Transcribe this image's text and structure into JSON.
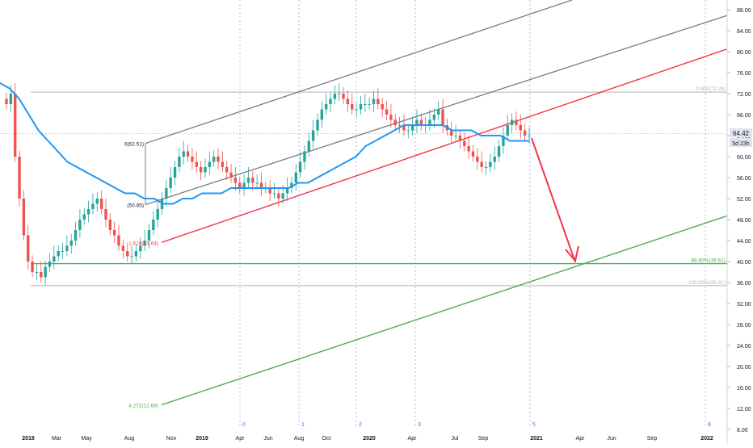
{
  "colors": {
    "up": "#26a69a",
    "down": "#ef5350",
    "ma": "#2196f3",
    "pitchfork_gray": "#787b86",
    "fib_red": "#f23645",
    "fib_green": "#4caf50",
    "time_fib": "#5b6ee1",
    "arrow": "#f23645",
    "price_badge": "#e0e3eb"
  },
  "price_badges": {
    "last": "64.42",
    "countdown": "5d 23h"
  },
  "chart_data": {
    "type": "candlestick",
    "ylim": [
      7.5,
      90.5
    ],
    "y_ticks": [
      8,
      12,
      16,
      20,
      24,
      28,
      32,
      36,
      40,
      44,
      48,
      52,
      56,
      60,
      64,
      68,
      72,
      76,
      80,
      84,
      88
    ],
    "y_tick_labels": [
      "8.00",
      "12.00",
      "16.00",
      "20.00",
      "24.00",
      "28.00",
      "32.00",
      "36.00",
      "40.00",
      "44.00",
      "48.00",
      "52.00",
      "56.00",
      "60.00",
      "64.00",
      "68.00",
      "72.00",
      "76.00",
      "80.00",
      "84.00",
      "88.00"
    ],
    "x_labels": [
      "2018",
      "Mar",
      "May",
      "Aug",
      "Nov",
      "2019",
      "Apr",
      "Jun",
      "Aug",
      "Oct",
      "2020",
      "Apr",
      "Jul",
      "Sep",
      "2021",
      "Apr",
      "Jun",
      "Sep",
      "2022",
      "Apr"
    ],
    "candles_weekly_closes_approx": [
      70,
      72,
      60,
      52,
      45,
      40,
      38,
      38,
      37,
      39,
      40,
      41,
      42,
      42,
      43,
      44,
      46,
      48,
      49,
      50,
      51,
      52,
      50,
      48,
      46,
      45,
      43,
      42,
      41,
      41,
      42,
      43,
      44,
      46,
      48,
      50,
      52,
      54,
      56,
      58,
      60,
      61,
      60,
      59,
      58,
      57,
      58,
      59,
      60,
      59,
      58,
      57,
      56,
      55,
      54,
      55,
      56,
      55,
      55,
      54,
      54,
      53,
      53,
      52,
      53,
      54,
      55,
      57,
      59,
      61,
      63,
      65,
      67,
      69,
      70,
      71,
      72,
      72,
      71,
      70,
      69,
      69,
      70,
      70,
      70,
      71,
      70,
      69,
      68,
      67,
      66,
      66,
      65,
      65,
      66,
      67,
      66,
      66,
      67,
      68,
      69,
      66,
      65,
      64,
      64,
      63,
      62,
      61,
      60,
      59,
      58,
      58,
      59,
      60,
      62,
      64,
      66,
      67,
      66,
      65,
      64,
      64
    ],
    "moving_average": {
      "name": "",
      "values_approx": [
        74,
        73,
        71,
        68,
        65,
        63,
        61,
        59,
        58,
        57,
        56,
        55,
        54,
        53,
        53,
        52,
        52,
        51,
        51,
        52,
        52,
        53,
        53,
        53,
        54,
        54,
        54,
        54,
        54,
        54,
        54,
        55,
        55,
        56,
        57,
        58,
        59,
        60,
        62,
        63,
        64,
        65,
        66,
        66,
        66,
        66,
        66,
        65,
        65,
        65,
        64,
        64,
        64,
        63,
        63,
        63
      ]
    },
    "fib_levels": [
      {
        "label": "0(62.51)",
        "value": 62.51
      },
      {
        "label": "(50.85)",
        "value": 50.85
      },
      {
        "label": "0.000(72.28)",
        "value": 72.28
      },
      {
        "label": "1.618(43.64)",
        "value": 43.64
      },
      {
        "label": "88.60%(39.61)",
        "value": 39.61
      },
      {
        "label": "100.00%(35.41)",
        "value": 35.41
      },
      {
        "label": "4.272(12.68)",
        "value": 12.68
      }
    ],
    "time_fib_labels": [
      "0",
      "1",
      "2",
      "3",
      "5",
      "8"
    ],
    "last_price": 64.42
  }
}
